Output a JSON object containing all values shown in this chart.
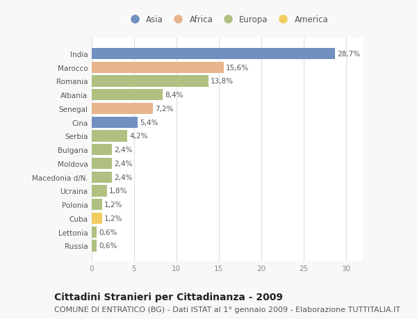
{
  "countries": [
    "India",
    "Marocco",
    "Romania",
    "Albania",
    "Senegal",
    "Cina",
    "Serbia",
    "Bulgaria",
    "Moldova",
    "Macedonia d/N.",
    "Ucraina",
    "Polonia",
    "Cuba",
    "Lettonia",
    "Russia"
  ],
  "values": [
    28.7,
    15.6,
    13.8,
    8.4,
    7.2,
    5.4,
    4.2,
    2.4,
    2.4,
    2.4,
    1.8,
    1.2,
    1.2,
    0.6,
    0.6
  ],
  "labels": [
    "28,7%",
    "15,6%",
    "13,8%",
    "8,4%",
    "7,2%",
    "5,4%",
    "4,2%",
    "2,4%",
    "2,4%",
    "2,4%",
    "1,8%",
    "1,2%",
    "1,2%",
    "0,6%",
    "0,6%"
  ],
  "continents": [
    "Asia",
    "Africa",
    "Europa",
    "Europa",
    "Africa",
    "Asia",
    "Europa",
    "Europa",
    "Europa",
    "Europa",
    "Europa",
    "Europa",
    "America",
    "Europa",
    "Europa"
  ],
  "colors": {
    "Asia": "#7090c0",
    "Africa": "#e8b48c",
    "Europa": "#afc080",
    "America": "#f0cc60"
  },
  "legend_order": [
    "Asia",
    "Africa",
    "Europa",
    "America"
  ],
  "title": "Cittadini Stranieri per Cittadinanza - 2009",
  "subtitle": "COMUNE DI ENTRATICO (BG) - Dati ISTAT al 1° gennaio 2009 - Elaborazione TUTTITALIA.IT",
  "xlim": [
    0,
    32
  ],
  "xticks": [
    0,
    5,
    10,
    15,
    20,
    25,
    30
  ],
  "background_color": "#f8f8f8",
  "bar_background": "#ffffff",
  "grid_color": "#dddddd",
  "title_fontsize": 10,
  "subtitle_fontsize": 8,
  "label_fontsize": 7.5,
  "tick_fontsize": 7.5,
  "legend_fontsize": 8.5
}
